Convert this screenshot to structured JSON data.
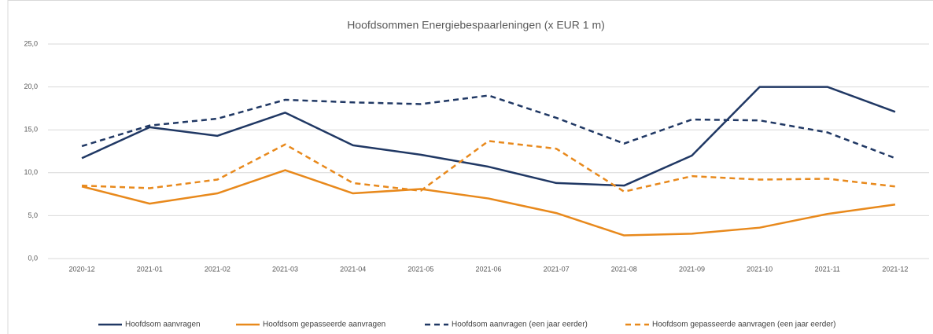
{
  "chart_data": {
    "type": "line",
    "title": "Hoofdsommen Energiebespaarleningen (x EUR 1 m)",
    "categories": [
      "2020-12",
      "2021-01",
      "2021-02",
      "2021-03",
      "2021-04",
      "2021-05",
      "2021-06",
      "2021-07",
      "2021-08",
      "2021-09",
      "2021-10",
      "2021-11",
      "2021-12"
    ],
    "series": [
      {
        "name": "Hoofdsom aanvragen",
        "color": "#203864",
        "dashed": false,
        "values": [
          11.7,
          15.3,
          14.3,
          17.0,
          13.2,
          12.1,
          10.7,
          8.8,
          8.5,
          12.0,
          20.0,
          20.0,
          17.1
        ]
      },
      {
        "name": "Hoofdsom gepasseerde aanvragen",
        "color": "#e8891c",
        "dashed": false,
        "values": [
          8.4,
          6.4,
          7.6,
          10.3,
          7.6,
          8.1,
          7.0,
          5.3,
          2.7,
          2.9,
          3.6,
          5.2,
          6.3
        ]
      },
      {
        "name": "Hoofdsom aanvragen (een jaar eerder)",
        "color": "#203864",
        "dashed": true,
        "values": [
          13.1,
          15.5,
          16.3,
          18.5,
          18.2,
          18.0,
          19.0,
          16.4,
          13.4,
          16.2,
          16.1,
          14.7,
          11.7
        ]
      },
      {
        "name": "Hoofdsom gepasseerde aanvragen (een jaar eerder)",
        "color": "#e8891c",
        "dashed": true,
        "values": [
          8.5,
          8.2,
          9.2,
          13.3,
          8.8,
          7.9,
          13.7,
          12.8,
          7.8,
          9.6,
          9.2,
          9.3,
          8.4
        ]
      }
    ],
    "ylim": [
      0,
      25
    ],
    "yticks": [
      {
        "value": 0,
        "label": "0,0"
      },
      {
        "value": 5,
        "label": "5,0"
      },
      {
        "value": 10,
        "label": "10,0"
      },
      {
        "value": 15,
        "label": "15,0"
      },
      {
        "value": 20,
        "label": "20,0"
      },
      {
        "value": 25,
        "label": "25,0"
      }
    ],
    "grid": true,
    "legend": "bottom"
  }
}
